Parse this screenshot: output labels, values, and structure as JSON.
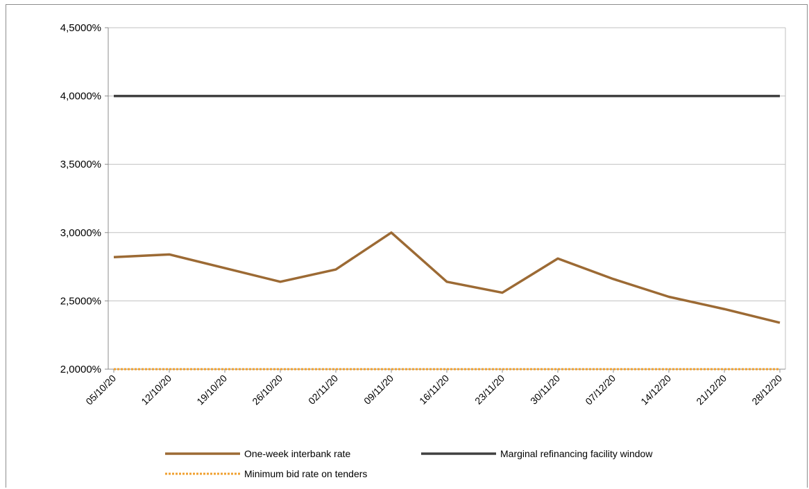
{
  "chart_data": {
    "type": "line",
    "x": [
      "05/10/20",
      "12/10/20",
      "19/10/20",
      "26/10/20",
      "02/11/20",
      "09/11/20",
      "16/11/20",
      "23/11/20",
      "30/11/20",
      "07/12/20",
      "14/12/20",
      "21/12/20",
      "28/12/20"
    ],
    "series": [
      {
        "name": "One-week interbank rate",
        "color": "#9c6a34",
        "style": "solid",
        "values": [
          2.82,
          2.84,
          2.74,
          2.64,
          2.73,
          3.0,
          2.64,
          2.56,
          2.81,
          2.66,
          2.53,
          2.44,
          2.34
        ]
      },
      {
        "name": "Marginal refinancing facility window",
        "color": "#404040",
        "style": "solid",
        "values": [
          4.0,
          4.0,
          4.0,
          4.0,
          4.0,
          4.0,
          4.0,
          4.0,
          4.0,
          4.0,
          4.0,
          4.0,
          4.0
        ]
      },
      {
        "name": "Minimum bid rate on tenders",
        "color": "#f0a030",
        "style": "dotted",
        "values": [
          2.0,
          2.0,
          2.0,
          2.0,
          2.0,
          2.0,
          2.0,
          2.0,
          2.0,
          2.0,
          2.0,
          2.0,
          2.0
        ]
      }
    ],
    "yticks": [
      "2,0000%",
      "2,5000%",
      "3,0000%",
      "3,5000%",
      "4,0000%",
      "4,5000%"
    ],
    "ytick_values": [
      2.0,
      2.5,
      3.0,
      3.5,
      4.0,
      4.5
    ],
    "ylim": [
      2.0,
      4.5
    ],
    "grid": true,
    "legend_position": "bottom"
  }
}
